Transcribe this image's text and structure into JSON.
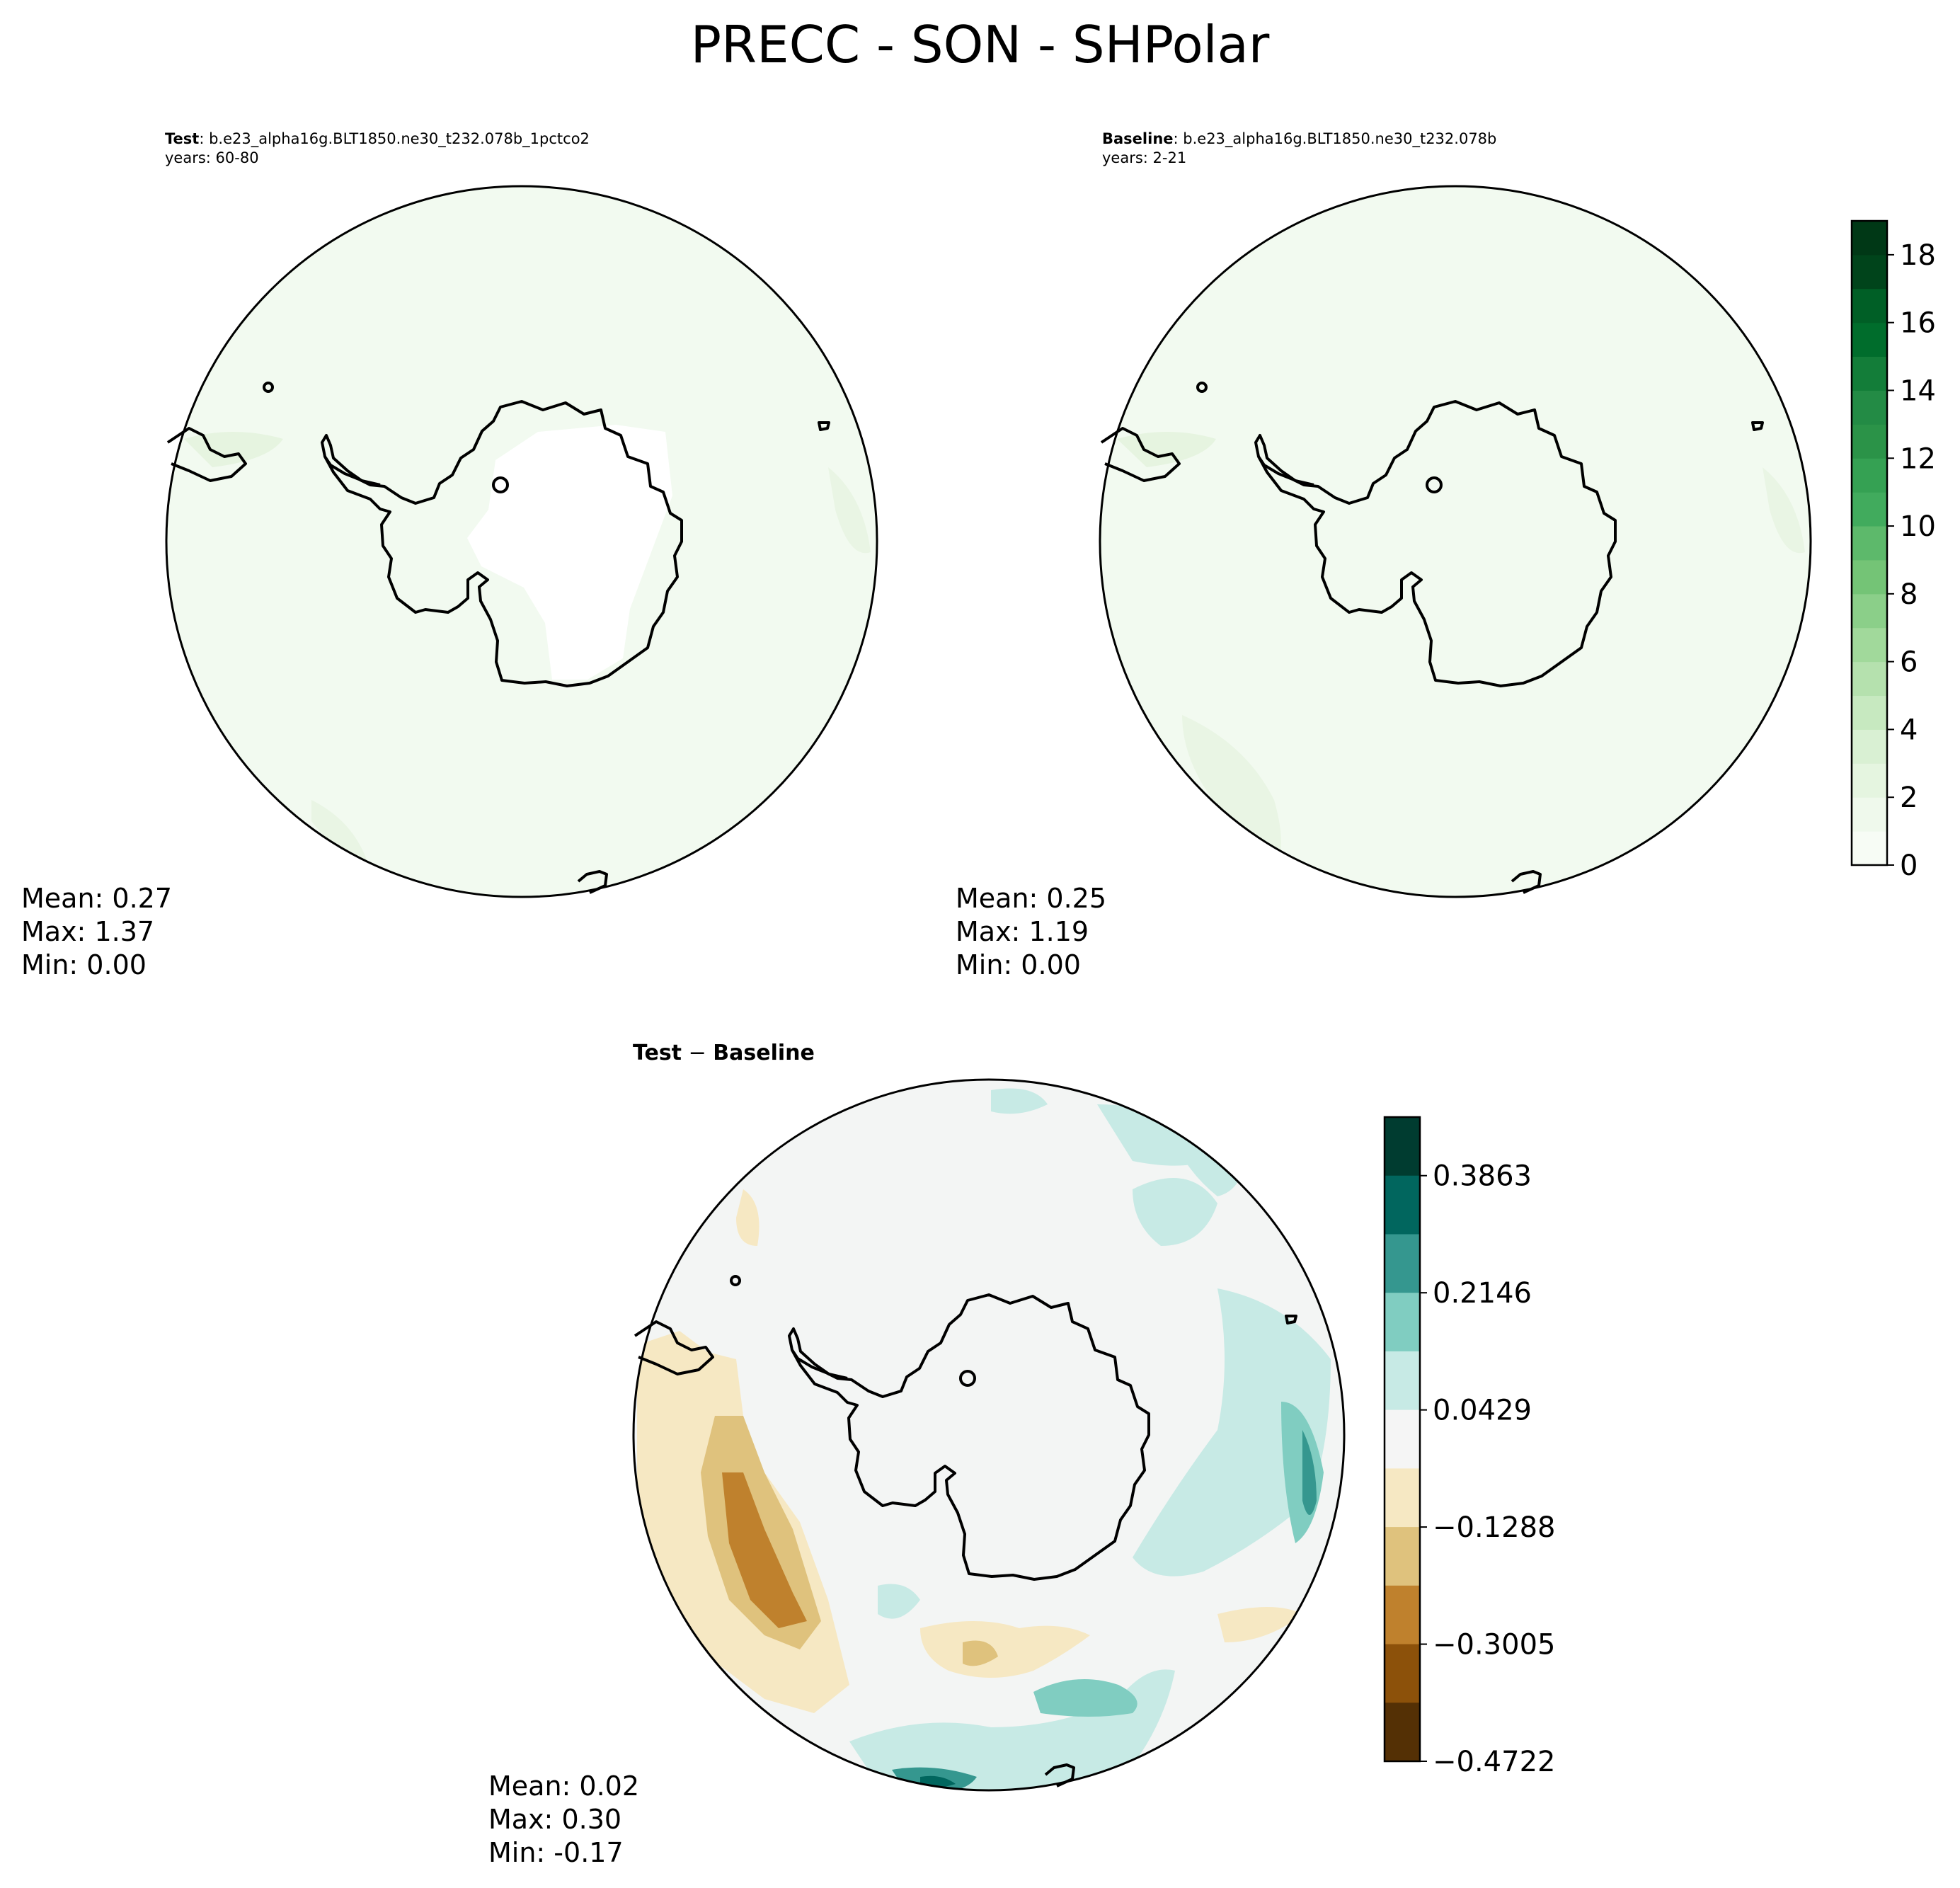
{
  "figure": {
    "title": "PRECC - SON - SHPolar"
  },
  "panels": {
    "test": {
      "label": "Test",
      "case": ": b.e23_alpha16g.BLT1850.ne30_t232.078b_1pctco2",
      "years": "years: 60-80",
      "stats": {
        "mean": "Mean:  0.27",
        "max": "Max:  1.37",
        "min": "Min:  0.00"
      }
    },
    "baseline": {
      "label": "Baseline",
      "case": ": b.e23_alpha16g.BLT1850.ne30_t232.078b",
      "years": "years: 2-21",
      "stats": {
        "mean": "Mean:  0.25",
        "max": "Max:  1.19",
        "min": "Min:  0.00"
      }
    },
    "difference": {
      "label_a": "Test",
      "label_sep": " − ",
      "label_b": "Baseline",
      "stats": {
        "mean": "Mean:  0.02",
        "max": "Max:  0.30",
        "min": "Min: -0.17"
      }
    }
  },
  "colorbars": {
    "main": {
      "ticks": [
        "0",
        "2",
        "4",
        "6",
        "8",
        "10",
        "12",
        "14",
        "16",
        "18"
      ],
      "range": [
        0,
        19
      ],
      "levels": 19,
      "colors": [
        "#f7fcf5",
        "#eff9ec",
        "#e5f5e0",
        "#d9f0d3",
        "#c7e9c0",
        "#b5e1ae",
        "#a1d99b",
        "#8bcf89",
        "#74c476",
        "#5db96b",
        "#41ab5d",
        "#35a153",
        "#2b9348",
        "#238b45",
        "#137d39",
        "#006d2c",
        "#005f26",
        "#00441b",
        "#003816"
      ]
    },
    "diff": {
      "ticks": [
        "0.3863",
        "0.2146",
        "0.0429",
        "−0.1288",
        "−0.3005",
        "−0.4722"
      ],
      "colors": [
        "#003c30",
        "#01665e",
        "#35978f",
        "#80cdc1",
        "#c7eae5",
        "#f5f5f5",
        "#f6e8c3",
        "#dfc27d",
        "#bf812d",
        "#8c510a",
        "#543005"
      ]
    }
  },
  "map_colors": {
    "ocean_field": "#f2faf0",
    "land_outline": "#000000"
  }
}
